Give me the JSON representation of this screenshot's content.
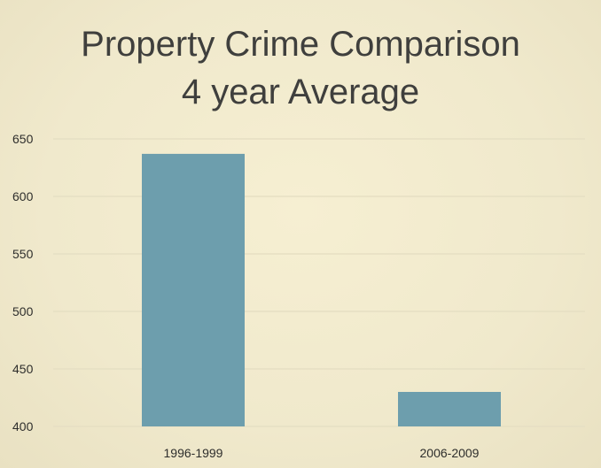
{
  "chart_data": {
    "type": "bar",
    "title": "Property Crime Comparison",
    "subtitle": "4 year Average",
    "xlabel": "",
    "ylabel": "",
    "categories": [
      "1996-1999",
      "2006-2009"
    ],
    "values": [
      637,
      430
    ],
    "ylim": [
      400,
      650
    ],
    "yticks": [
      400,
      450,
      500,
      550,
      600,
      650
    ],
    "grid": true,
    "legend": "none",
    "bar_color": "#6d9ead",
    "grid_color": "#e6dfc3"
  }
}
